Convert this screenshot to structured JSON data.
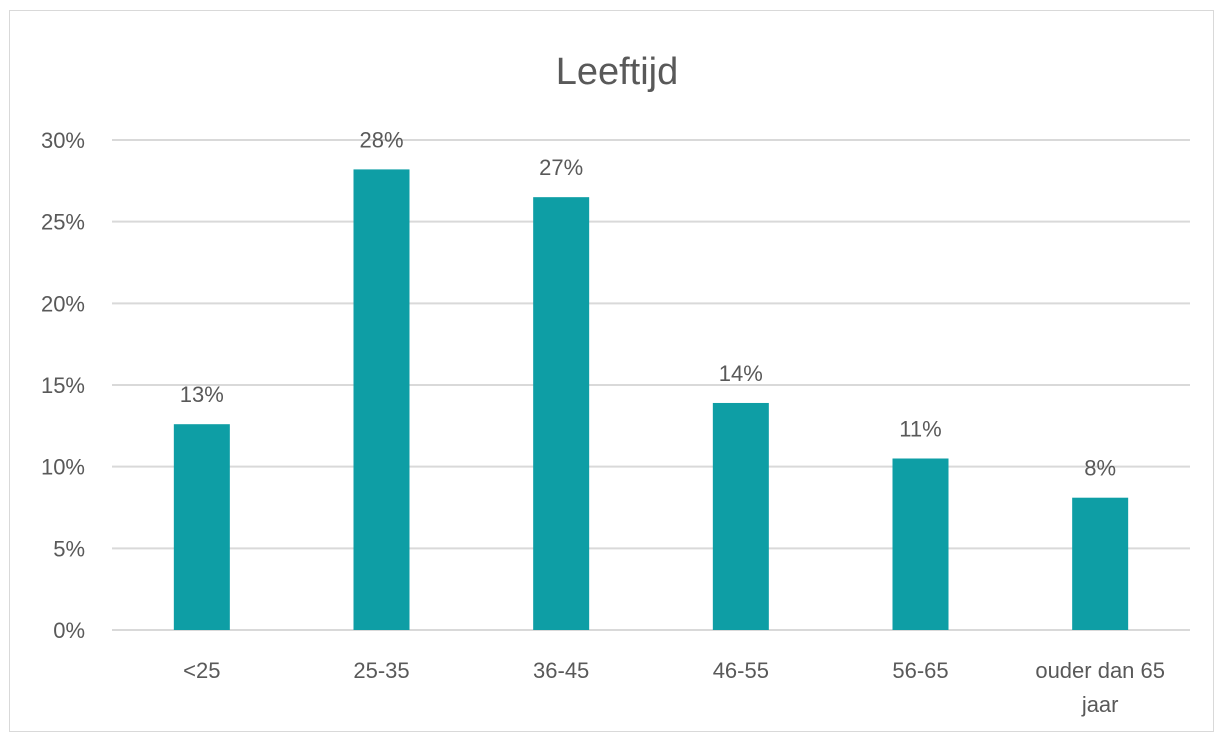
{
  "chart_data": {
    "type": "bar",
    "title": "Leeftijd",
    "categories": [
      "<25",
      "25-35",
      "36-45",
      "46-55",
      "56-65",
      "ouder dan 65 jaar"
    ],
    "category_lines": [
      [
        "<25"
      ],
      [
        "25-35"
      ],
      [
        "36-45"
      ],
      [
        "46-55"
      ],
      [
        "56-65"
      ],
      [
        "ouder dan 65",
        "jaar"
      ]
    ],
    "values": [
      12.6,
      28.2,
      26.5,
      13.9,
      10.5,
      8.1
    ],
    "data_labels": [
      "13%",
      "28%",
      "27%",
      "14%",
      "11%",
      "8%"
    ],
    "yticks": [
      "0%",
      "5%",
      "10%",
      "15%",
      "20%",
      "25%",
      "30%"
    ],
    "ylim": [
      0,
      30
    ],
    "ystep": 5,
    "grid": true,
    "legend": "none",
    "bar_color": "#0e9ea5",
    "grid_color": "#d9d9d9",
    "text_color": "#595959"
  }
}
